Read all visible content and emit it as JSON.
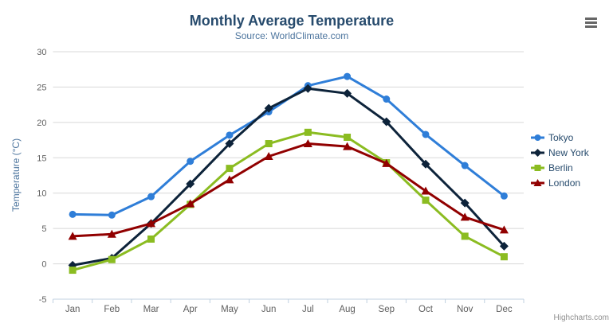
{
  "chart": {
    "title": "Monthly Average Temperature",
    "subtitle": "Source: WorldClimate.com",
    "y_axis_title": "Temperature (°C)",
    "credits": "Highcharts.com",
    "export_menu": "context-menu"
  },
  "chart_data": {
    "type": "line",
    "title": "Monthly Average Temperature",
    "subtitle": "Source: WorldClimate.com",
    "xlabel": "",
    "ylabel": "Temperature (°C)",
    "categories": [
      "Jan",
      "Feb",
      "Mar",
      "Apr",
      "May",
      "Jun",
      "Jul",
      "Aug",
      "Sep",
      "Oct",
      "Nov",
      "Dec"
    ],
    "series": [
      {
        "name": "Tokyo",
        "color": "#2f7ed8",
        "marker": "circle",
        "values": [
          7.0,
          6.9,
          9.5,
          14.5,
          18.2,
          21.5,
          25.2,
          26.5,
          23.3,
          18.3,
          13.9,
          9.6
        ]
      },
      {
        "name": "New York",
        "color": "#0d233a",
        "marker": "diamond",
        "values": [
          -0.2,
          0.8,
          5.7,
          11.3,
          17.0,
          22.0,
          24.8,
          24.1,
          20.1,
          14.1,
          8.6,
          2.5
        ]
      },
      {
        "name": "Berlin",
        "color": "#8bbc21",
        "marker": "square",
        "values": [
          -0.9,
          0.6,
          3.5,
          8.4,
          13.5,
          17.0,
          18.6,
          17.9,
          14.3,
          9.0,
          3.9,
          1.0
        ]
      },
      {
        "name": "London",
        "color": "#910000",
        "marker": "triangle",
        "values": [
          3.9,
          4.2,
          5.7,
          8.5,
          11.9,
          15.2,
          17.0,
          16.6,
          14.2,
          10.3,
          6.6,
          4.8
        ]
      }
    ],
    "ylim": [
      -5,
      30
    ],
    "yticks": [
      -5,
      0,
      5,
      10,
      15,
      20,
      25,
      30
    ],
    "grid": true,
    "legend_position": "right",
    "colors": {
      "gridline": "#d8d8d8",
      "axis_line": "#c0d0e0",
      "tick_label": "#606060",
      "title_text": "#274b6d",
      "subtitle_text": "#4d759e"
    }
  }
}
